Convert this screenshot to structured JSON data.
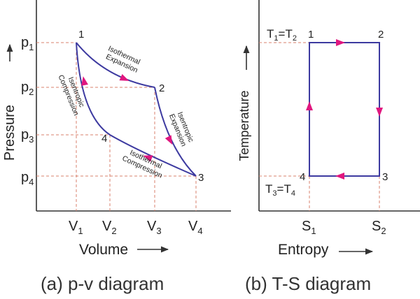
{
  "pv": {
    "caption": "(a) p-v diagram",
    "y_axis_label": "Pressure",
    "x_axis_label": "Volume",
    "pressure_ticks": [
      "p1",
      "p2",
      "p3",
      "p4"
    ],
    "volume_ticks": [
      "V1",
      "V2",
      "V3",
      "V4"
    ],
    "points": [
      "1",
      "2",
      "3",
      "4"
    ],
    "processes": [
      {
        "name": "Isothermal Expansion",
        "line1": "Isothermal",
        "line2": "Expansion"
      },
      {
        "name": "Isentropic Expansion",
        "line1": "Isentropic",
        "line2": "Expansion"
      },
      {
        "name": "Isothermal Compression",
        "line1": "Isothermal",
        "line2": "Compression"
      },
      {
        "name": "Isentropic Compression",
        "line1": "Isentropic",
        "line2": "Compression"
      }
    ]
  },
  "ts": {
    "caption": "(b) T-S diagram",
    "y_axis_label": "Temperature",
    "x_axis_label": "Entropy",
    "entropy_ticks": [
      "S1",
      "S2"
    ],
    "temp_label_top": "T1=T2",
    "temp_label_bottom": "T3=T4",
    "points": [
      "1",
      "2",
      "3",
      "4"
    ]
  },
  "colors": {
    "cycle": "#3d3aa0",
    "arrows": "#e0177f",
    "guides": "#d9826e",
    "axes": "#333333"
  }
}
